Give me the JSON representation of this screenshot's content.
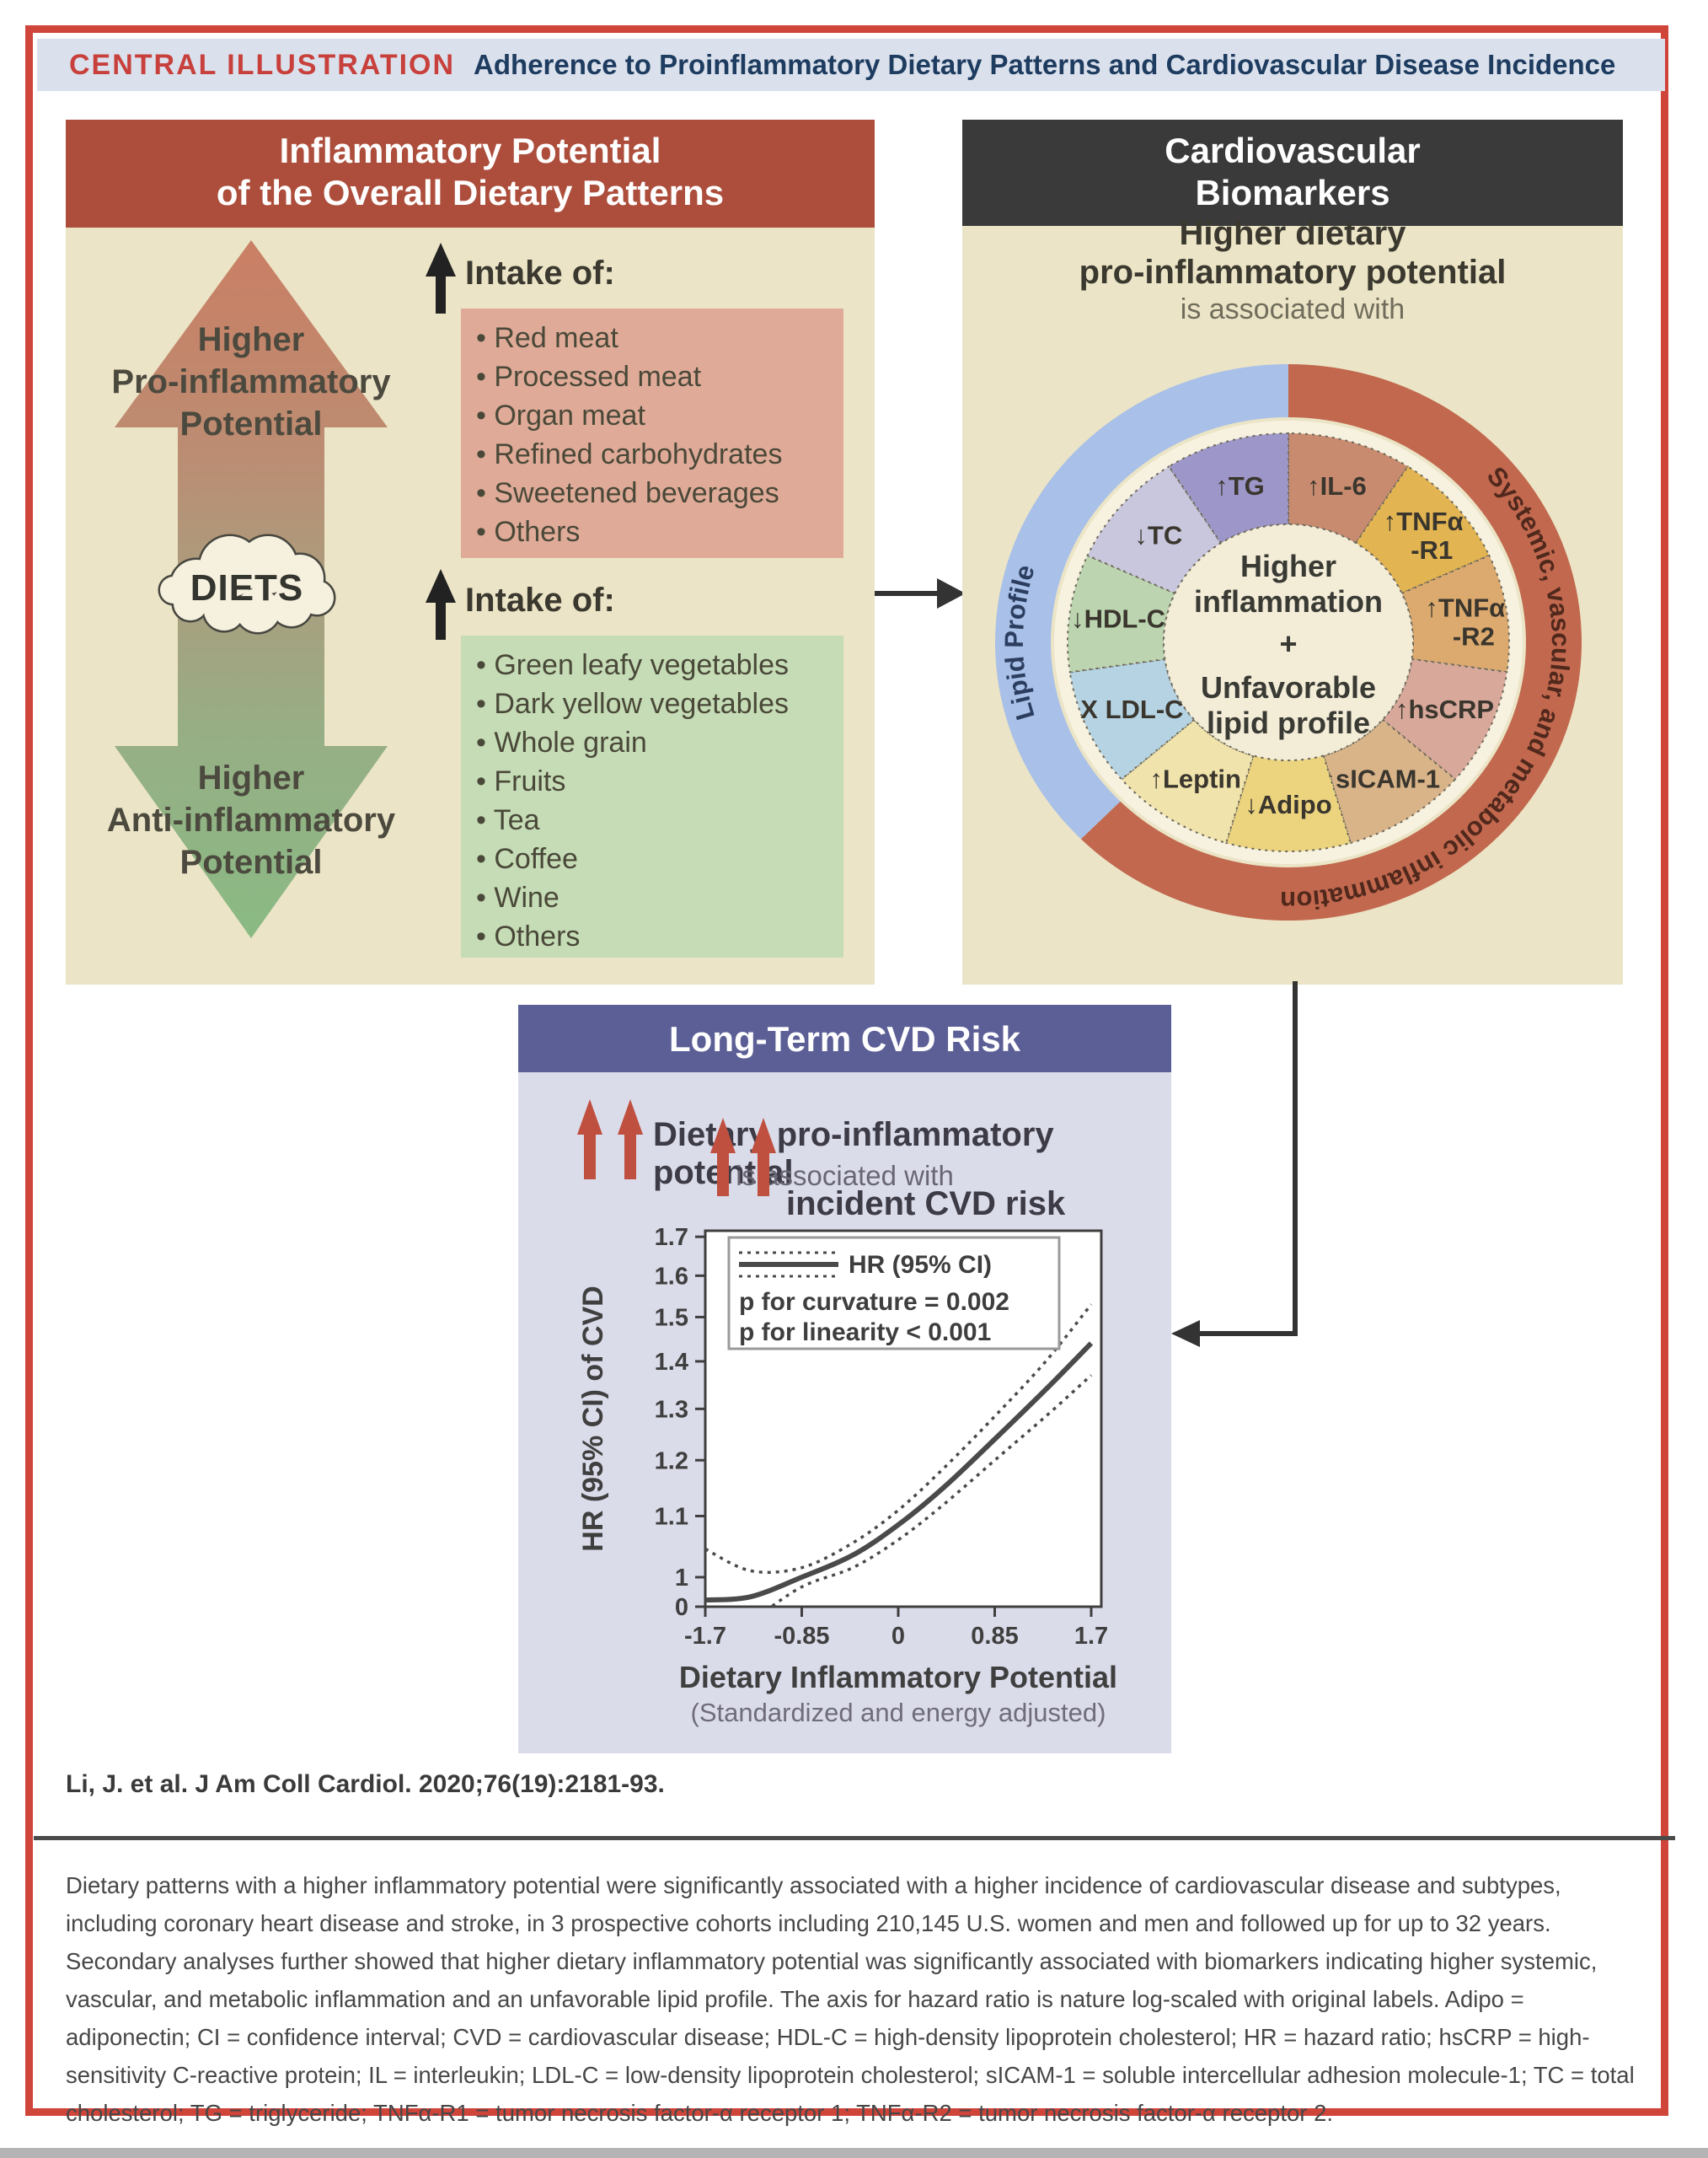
{
  "header": {
    "kicker": "CENTRAL ILLUSTRATION",
    "title": "Adherence to Proinflammatory Dietary Patterns and Cardiovascular Disease Incidence",
    "kicker_color": "#c8403c",
    "title_color": "#1d3c60",
    "bar_bg": "#dbe1ec"
  },
  "left_panel": {
    "title_line1": "Inflammatory Potential",
    "title_line2": "of the Overall Dietary Patterns",
    "header_bg": "#ad4e3c",
    "body_bg": "#ebe4c6",
    "cloud_label": "DIETS",
    "pro_label_lines": [
      "Higher",
      "Pro-inflammatory",
      "Potential"
    ],
    "anti_label_lines": [
      "Higher",
      "Anti-inflammatory",
      "Potential"
    ],
    "arrow_gradient": [
      "#ca7f64",
      "#bc8c72",
      "#ab9d7e",
      "#97ae85",
      "#8aba84"
    ],
    "intake_pro": {
      "heading": "Intake of:",
      "bg": "#dfab98",
      "items": [
        "Red meat",
        "Processed meat",
        "Organ meat",
        "Refined carbohydrates",
        "Sweetened beverages",
        "Others"
      ]
    },
    "intake_anti": {
      "heading": "Intake of:",
      "bg": "#c5dcb6",
      "items": [
        "Green leafy vegetables",
        "Dark yellow vegetables",
        "Whole grain",
        "Fruits",
        "Tea",
        "Coffee",
        "Wine",
        "Others"
      ]
    }
  },
  "right_panel": {
    "title_line1": "Cardiovascular",
    "title_line2": "Biomarkers",
    "header_bg": "#3b3a3a",
    "body_bg": "#ebe4c6",
    "subtitle_line1": "Higher dietary",
    "subtitle_line2": "pro-inflammatory potential",
    "subtitle_line3": "is associated with",
    "donut": {
      "ring_left_label": "Lipid Profile",
      "ring_right_label": "Systemic, vascular, and metabolic inflammation",
      "ring_left_color": "#a9c0e8",
      "ring_right_color": "#c2684e",
      "ring_left_text_color": "#2c3e60",
      "ring_right_text_color": "#50281c",
      "gap_color": "#f7f2e0",
      "center_bg": "#f3edd8",
      "center_lines": [
        "Higher",
        "inflammation",
        "+",
        "Unfavorable",
        "lipid profile"
      ],
      "wedges": [
        {
          "arrow": "↑",
          "lines": [
            "IL-6"
          ],
          "color": "#c98b70"
        },
        {
          "arrow": "↑",
          "lines": [
            "TNFα",
            "-R1"
          ],
          "color": "#e2b452"
        },
        {
          "arrow": "↑",
          "lines": [
            "TNFα",
            "-R2"
          ],
          "color": "#dcaa6e"
        },
        {
          "arrow": "↑",
          "lines": [
            "hsCRP"
          ],
          "color": "#d8a99b"
        },
        {
          "arrow": "↑",
          "lines": [
            "sICAM-1"
          ],
          "color": "#d9b489"
        },
        {
          "arrow": "↓",
          "lines": [
            "Adipo"
          ],
          "color": "#ecd47e"
        },
        {
          "arrow": "↑",
          "lines": [
            "Leptin"
          ],
          "color": "#f0e3ab"
        },
        {
          "arrow": "X ",
          "lines": [
            "LDL-C"
          ],
          "color": "#b5d3e3"
        },
        {
          "arrow": "↓",
          "lines": [
            "HDL-C"
          ],
          "color": "#bcd5b0"
        },
        {
          "arrow": "↓",
          "lines": [
            "TC"
          ],
          "color": "#c9c7dd"
        },
        {
          "arrow": "↑",
          "lines": [
            "TG"
          ],
          "color": "#9d97c9"
        }
      ]
    }
  },
  "cvd_panel": {
    "title": "Long-Term CVD Risk",
    "header_bg": "#5b5f96",
    "body_bg": "#dbdcea",
    "arrow_color": "#bf4f3f",
    "line1": "Dietary pro-inflammatory potential",
    "line2": "is associated with",
    "line3": "incident CVD risk"
  },
  "chart_data": {
    "type": "line",
    "title": "",
    "xlabel": "Dietary Inflammatory Potential",
    "xlabel_sub": "(Standardized and energy adjusted)",
    "ylabel": "HR (95% CI) of CVD",
    "x_ticks": [
      "-1.7",
      "-0.85",
      "0",
      "0.85",
      "1.7"
    ],
    "x_tick_values": [
      -1.7,
      -0.85,
      0,
      0.85,
      1.7
    ],
    "y_ticks": [
      "0",
      "1",
      "1.1",
      "1.2",
      "1.3",
      "1.4",
      "1.5",
      "1.6",
      "1.7"
    ],
    "y_scale_note": "natural-log scaled above 1 with axis break to 0",
    "xlim": [
      -1.7,
      1.7
    ],
    "ylim": [
      0,
      1.7
    ],
    "legend": [
      "HR (95% CI)",
      "p for curvature = 0.002",
      "p for linearity < 0.001"
    ],
    "x": [
      -1.7,
      -1.3,
      -0.85,
      -0.4,
      0,
      0.4,
      0.85,
      1.3,
      1.7
    ],
    "series": [
      {
        "name": "HR",
        "style": "solid",
        "values": [
          0.965,
          0.97,
          1.0,
          1.035,
          1.085,
          1.15,
          1.24,
          1.34,
          1.44
        ]
      },
      {
        "name": "upper 95% CI",
        "style": "dashed",
        "values": [
          1.045,
          1.01,
          1.015,
          1.055,
          1.11,
          1.185,
          1.285,
          1.4,
          1.53
        ]
      },
      {
        "name": "lower 95% CI",
        "style": "dashed",
        "values": [
          0.905,
          0.935,
          0.985,
          1.015,
          1.06,
          1.12,
          1.2,
          1.285,
          1.37
        ]
      }
    ]
  },
  "citation": "Li, J. et al. J Am Coll Cardiol. 2020;76(19):2181-93.",
  "caption": "Dietary patterns with a higher inflammatory potential were significantly associated with a higher incidence of cardiovascular disease and subtypes, including coronary heart disease and stroke, in 3 prospective cohorts including 210,145 U.S. women and men and followed up for up to 32 years. Secondary analyses further showed that higher dietary inflammatory potential was significantly associated with biomarkers indicating higher systemic, vascular, and metabolic inflammation and an unfavorable lipid profile. The axis for hazard ratio is nature log-scaled with original labels. Adipo = adiponectin; CI = confidence interval; CVD = cardiovascular disease; HDL-C = high-density lipoprotein cholesterol; HR = hazard ratio; hsCRP = high-sensitivity C-reactive protein; IL = interleukin; LDL-C = low-density lipoprotein cholesterol; sICAM-1 = soluble intercellular adhesion molecule-1; TC = total cholesterol; TG = triglyceride; TNFα-R1 = tumor necrosis factor-α receptor 1; TNFα-R2 = tumor necrosis factor-α receptor 2."
}
